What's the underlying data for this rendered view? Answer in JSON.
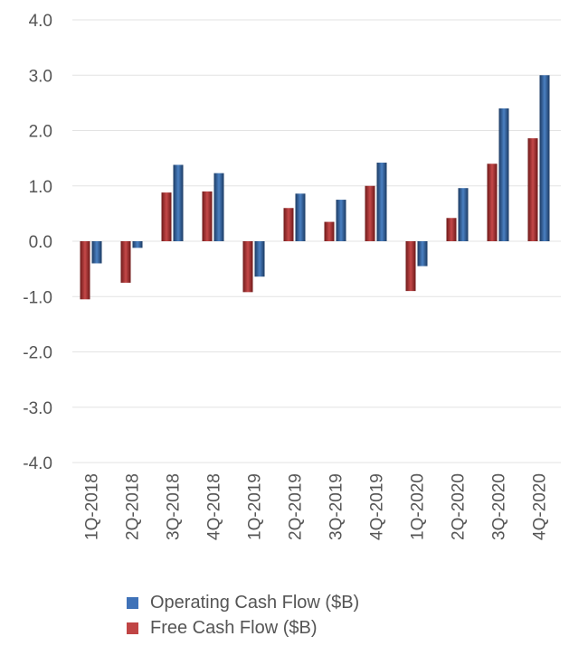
{
  "chart_data": {
    "type": "bar",
    "title": "",
    "xlabel": "",
    "ylabel": "",
    "ylim": [
      -4.0,
      4.0
    ],
    "yticks": [
      "4.0",
      "3.0",
      "2.0",
      "1.0",
      "0.0",
      "-1.0",
      "-2.0",
      "-3.0",
      "-4.0"
    ],
    "ytick_values": [
      4,
      3,
      2,
      1,
      0,
      -1,
      -2,
      -3,
      -4
    ],
    "grid": true,
    "legend_position": "bottom-center",
    "categories": [
      "1Q-2018",
      "2Q-2018",
      "3Q-2018",
      "4Q-2018",
      "1Q-2019",
      "2Q-2019",
      "3Q-2019",
      "4Q-2019",
      "1Q-2020",
      "2Q-2020",
      "3Q-2020",
      "4Q-2020"
    ],
    "series": [
      {
        "name": "Free Cash Flow ($B)",
        "color": "#a83232",
        "values": [
          -1.05,
          -0.75,
          0.88,
          0.9,
          -0.92,
          0.6,
          0.35,
          1.0,
          -0.9,
          0.42,
          1.4,
          1.86
        ]
      },
      {
        "name": "Operating Cash Flow ($B)",
        "color": "#2e5a8c",
        "values": [
          -0.4,
          -0.12,
          1.38,
          1.23,
          -0.64,
          0.86,
          0.75,
          1.42,
          -0.45,
          0.96,
          2.4,
          3.0
        ]
      }
    ],
    "legend": [
      {
        "label": "Operating Cash Flow ($B)",
        "color": "#3f72b8"
      },
      {
        "label": "Free Cash Flow ($B)",
        "color": "#c04545"
      }
    ]
  }
}
